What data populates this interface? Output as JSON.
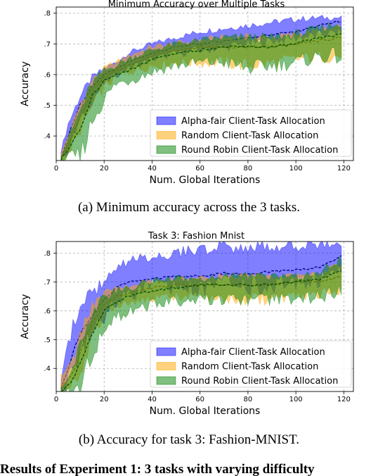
{
  "chart_data": [
    {
      "type": "line",
      "title": "Minimum Accuracy over Multiple Tasks",
      "xlabel": "Num. Global Iterations",
      "ylabel": "Accuracy",
      "xlim": [
        0,
        124
      ],
      "ylim": [
        0.32,
        0.82
      ],
      "xticks": [
        0,
        20,
        40,
        60,
        80,
        100,
        120
      ],
      "yticks": [
        0.4,
        0.5,
        0.6,
        0.7,
        0.8
      ],
      "ytick_labels": [
        ".4",
        ".5",
        ".6",
        ".7",
        ".8"
      ],
      "grid": true,
      "legend_position": "lower-right",
      "series": [
        {
          "name": "Alpha-fair Client-Task Allocation",
          "color": "#0000ff",
          "x": [
            2,
            5,
            10,
            15,
            20,
            25,
            30,
            40,
            50,
            60,
            70,
            80,
            90,
            100,
            110,
            119
          ],
          "mean": [
            0.33,
            0.4,
            0.5,
            0.56,
            0.6,
            0.62,
            0.64,
            0.67,
            0.69,
            0.7,
            0.71,
            0.72,
            0.73,
            0.74,
            0.76,
            0.775
          ],
          "lower": [
            0.32,
            0.36,
            0.45,
            0.52,
            0.57,
            0.6,
            0.62,
            0.65,
            0.67,
            0.68,
            0.69,
            0.7,
            0.71,
            0.72,
            0.73,
            0.74
          ],
          "upper": [
            0.35,
            0.44,
            0.53,
            0.59,
            0.62,
            0.64,
            0.67,
            0.7,
            0.72,
            0.74,
            0.75,
            0.76,
            0.77,
            0.78,
            0.785,
            0.785
          ]
        },
        {
          "name": "Random Client-Task Allocation",
          "color": "#ffa500",
          "x": [
            2,
            5,
            10,
            15,
            20,
            25,
            30,
            40,
            50,
            60,
            70,
            80,
            90,
            100,
            110,
            119
          ],
          "mean": [
            0.32,
            0.37,
            0.46,
            0.55,
            0.59,
            0.61,
            0.63,
            0.66,
            0.68,
            0.69,
            0.69,
            0.69,
            0.69,
            0.7,
            0.71,
            0.72
          ],
          "lower": [
            0.32,
            0.34,
            0.42,
            0.5,
            0.56,
            0.59,
            0.61,
            0.63,
            0.64,
            0.64,
            0.64,
            0.63,
            0.64,
            0.65,
            0.66,
            0.66
          ],
          "upper": [
            0.34,
            0.4,
            0.5,
            0.58,
            0.62,
            0.64,
            0.66,
            0.69,
            0.7,
            0.71,
            0.72,
            0.72,
            0.72,
            0.73,
            0.74,
            0.75
          ]
        },
        {
          "name": "Round Robin Client-Task Allocation",
          "color": "#008000",
          "x": [
            2,
            5,
            10,
            15,
            20,
            25,
            30,
            40,
            50,
            60,
            70,
            80,
            90,
            100,
            110,
            119
          ],
          "mean": [
            0.32,
            0.36,
            0.42,
            0.53,
            0.58,
            0.6,
            0.61,
            0.65,
            0.67,
            0.68,
            0.69,
            0.69,
            0.69,
            0.7,
            0.72,
            0.73
          ],
          "lower": [
            0.32,
            0.33,
            0.33,
            0.45,
            0.52,
            0.57,
            0.58,
            0.61,
            0.63,
            0.64,
            0.64,
            0.62,
            0.63,
            0.64,
            0.66,
            0.66
          ],
          "upper": [
            0.33,
            0.39,
            0.48,
            0.57,
            0.61,
            0.63,
            0.65,
            0.68,
            0.7,
            0.71,
            0.72,
            0.72,
            0.72,
            0.73,
            0.75,
            0.77
          ]
        }
      ]
    },
    {
      "type": "line",
      "title": "Task 3: Fashion Mnist",
      "xlabel": "Num. Global Iterations",
      "ylabel": "Accuracy",
      "xlim": [
        0,
        124
      ],
      "ylim": [
        0.32,
        0.84
      ],
      "xticks": [
        0,
        20,
        40,
        60,
        80,
        100,
        120
      ],
      "yticks": [
        0.4,
        0.5,
        0.6,
        0.7,
        0.8
      ],
      "ytick_labels": [
        ".4",
        ".5",
        ".6",
        ".7",
        ".8"
      ],
      "grid": true,
      "legend_position": "lower-right",
      "series": [
        {
          "name": "Alpha-fair Client-Task Allocation",
          "color": "#0000ff",
          "x": [
            2,
            5,
            8,
            10,
            15,
            20,
            25,
            30,
            40,
            50,
            60,
            70,
            80,
            90,
            100,
            110,
            119
          ],
          "mean": [
            0.33,
            0.4,
            0.48,
            0.52,
            0.58,
            0.64,
            0.68,
            0.7,
            0.71,
            0.72,
            0.72,
            0.73,
            0.73,
            0.735,
            0.74,
            0.75,
            0.79
          ],
          "lower": [
            0.32,
            0.35,
            0.4,
            0.45,
            0.52,
            0.58,
            0.63,
            0.66,
            0.68,
            0.68,
            0.68,
            0.69,
            0.69,
            0.69,
            0.7,
            0.71,
            0.74
          ],
          "upper": [
            0.36,
            0.48,
            0.58,
            0.62,
            0.66,
            0.7,
            0.74,
            0.77,
            0.79,
            0.8,
            0.81,
            0.82,
            0.82,
            0.82,
            0.825,
            0.825,
            0.825
          ]
        },
        {
          "name": "Random Client-Task Allocation",
          "color": "#ffa500",
          "x": [
            2,
            5,
            8,
            10,
            15,
            20,
            25,
            30,
            40,
            50,
            60,
            70,
            80,
            90,
            100,
            110,
            119
          ],
          "mean": [
            0.34,
            0.36,
            0.4,
            0.46,
            0.56,
            0.62,
            0.65,
            0.66,
            0.68,
            0.69,
            0.69,
            0.69,
            0.69,
            0.69,
            0.7,
            0.7,
            0.72
          ],
          "lower": [
            0.32,
            0.33,
            0.36,
            0.4,
            0.5,
            0.58,
            0.62,
            0.63,
            0.64,
            0.65,
            0.65,
            0.64,
            0.64,
            0.64,
            0.65,
            0.66,
            0.67
          ],
          "upper": [
            0.37,
            0.4,
            0.45,
            0.52,
            0.62,
            0.66,
            0.68,
            0.69,
            0.7,
            0.71,
            0.71,
            0.72,
            0.72,
            0.72,
            0.72,
            0.73,
            0.76
          ]
        },
        {
          "name": "Round Robin Client-Task Allocation",
          "color": "#008000",
          "x": [
            2,
            5,
            8,
            10,
            15,
            20,
            25,
            30,
            40,
            50,
            60,
            70,
            80,
            90,
            100,
            110,
            119
          ],
          "mean": [
            0.32,
            0.34,
            0.38,
            0.42,
            0.52,
            0.6,
            0.63,
            0.65,
            0.67,
            0.68,
            0.69,
            0.69,
            0.69,
            0.69,
            0.7,
            0.71,
            0.74
          ],
          "lower": [
            0.32,
            0.32,
            0.33,
            0.33,
            0.44,
            0.54,
            0.58,
            0.6,
            0.62,
            0.63,
            0.64,
            0.64,
            0.64,
            0.64,
            0.64,
            0.65,
            0.67
          ],
          "upper": [
            0.33,
            0.37,
            0.43,
            0.5,
            0.59,
            0.65,
            0.67,
            0.68,
            0.7,
            0.71,
            0.71,
            0.72,
            0.72,
            0.72,
            0.72,
            0.73,
            0.78
          ]
        }
      ]
    }
  ],
  "captions": {
    "a": "(a)  Minimum  accuracy  across  the  3  tasks.",
    "b": "(b)  Accuracy  for  task  3:  Fashion-MNIST."
  },
  "bottom_text": "Results of Experiment 1: 3 tasks with varying difficulty"
}
